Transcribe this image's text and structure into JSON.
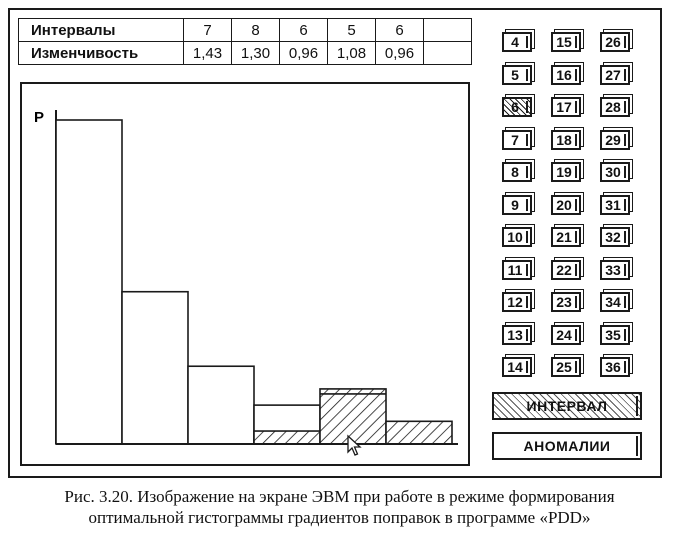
{
  "table": {
    "row1_label": "Интервалы",
    "row2_label": "Изменчивость",
    "intervals": [
      "7",
      "8",
      "6",
      "5",
      "6"
    ],
    "variability": [
      "1,43",
      "1,30",
      "0,96",
      "1,08",
      "0,96"
    ]
  },
  "chart_data": {
    "type": "bar",
    "ylabel": "P",
    "bars_plain": [
      1.0,
      0.47,
      0.24,
      0.12
    ],
    "bars_hatched": [
      0.04,
      0.17,
      0.07
    ],
    "bar_bands": [
      "clear",
      "clear",
      "clear",
      "clear+hatched",
      "hatched",
      "hatched"
    ],
    "ylim": [
      0,
      1.0
    ]
  },
  "number_buttons": [
    "4",
    "5",
    "6",
    "7",
    "8",
    "9",
    "10",
    "11",
    "12",
    "13",
    "14",
    "15",
    "16",
    "17",
    "18",
    "19",
    "20",
    "21",
    "22",
    "23",
    "24",
    "25",
    "26",
    "27",
    "28",
    "29",
    "30",
    "31",
    "32",
    "33",
    "34",
    "35",
    "36"
  ],
  "selected_number": "6",
  "actions": {
    "interval_label": "ИНТЕРВАЛ",
    "anomalies_label": "АНОМАЛИИ"
  },
  "caption": {
    "line1": "Рис. 3.20. Изображение на экране ЭВМ при работе в режиме формирования",
    "line2": "оптимальной гистограммы градиентов поправок в программе «PDD»"
  }
}
